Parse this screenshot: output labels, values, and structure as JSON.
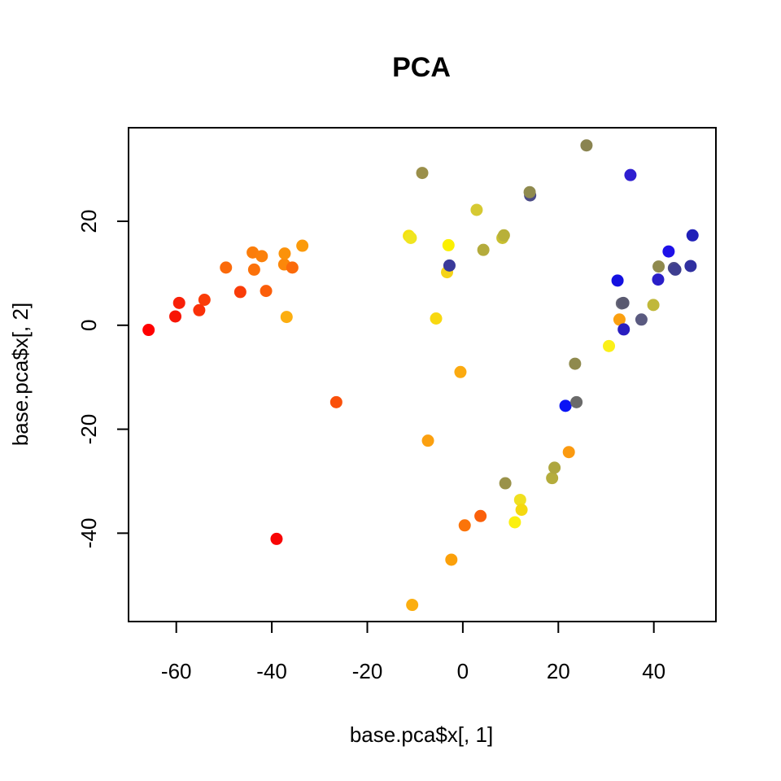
{
  "chart_data": {
    "type": "scatter",
    "title": "PCA",
    "xlabel": "base.pca$x[, 1]",
    "ylabel": "base.pca$x[, 2]",
    "xlim": [
      -70,
      53
    ],
    "ylim": [
      -57,
      38
    ],
    "xticks": [
      -60,
      -40,
      -20,
      0,
      20,
      40
    ],
    "yticks": [
      -40,
      -20,
      0,
      20
    ],
    "grid": false,
    "legend": "none",
    "points": [
      {
        "x": -65.8,
        "y": -0.9,
        "color": "#ff0000"
      },
      {
        "x": -60.2,
        "y": 1.7,
        "color": "#f81505"
      },
      {
        "x": -59.4,
        "y": 4.3,
        "color": "#f82008"
      },
      {
        "x": -55.2,
        "y": 2.9,
        "color": "#fa3008"
      },
      {
        "x": -54.1,
        "y": 4.9,
        "color": "#fa3c08"
      },
      {
        "x": -49.6,
        "y": 11.1,
        "color": "#fb6a0a"
      },
      {
        "x": -46.6,
        "y": 6.4,
        "color": "#f93c08"
      },
      {
        "x": -44.0,
        "y": 14.0,
        "color": "#fb7d0a"
      },
      {
        "x": -43.7,
        "y": 10.7,
        "color": "#fb710a"
      },
      {
        "x": -42.1,
        "y": 13.3,
        "color": "#fb800a"
      },
      {
        "x": -41.2,
        "y": 6.6,
        "color": "#fb5e0a"
      },
      {
        "x": -37.4,
        "y": 11.7,
        "color": "#fb870a"
      },
      {
        "x": -37.3,
        "y": 13.8,
        "color": "#fb920a"
      },
      {
        "x": -36.9,
        "y": 1.6,
        "color": "#fcae10"
      },
      {
        "x": -35.7,
        "y": 11.1,
        "color": "#fb6a0a"
      },
      {
        "x": -33.6,
        "y": 15.3,
        "color": "#fb9a0a"
      },
      {
        "x": -26.5,
        "y": -14.8,
        "color": "#fa500a"
      },
      {
        "x": -39.0,
        "y": -41.1,
        "color": "#f80505"
      },
      {
        "x": -11.3,
        "y": 17.2,
        "color": "#f5e20e"
      },
      {
        "x": -10.9,
        "y": 16.8,
        "color": "#f0e520"
      },
      {
        "x": -8.5,
        "y": 29.3,
        "color": "#9a8f4a"
      },
      {
        "x": -3.3,
        "y": 10.2,
        "color": "#f5d318"
      },
      {
        "x": -3.0,
        "y": 15.4,
        "color": "#fbf000"
      },
      {
        "x": -2.8,
        "y": 11.5,
        "color": "#3a3a9a"
      },
      {
        "x": -5.6,
        "y": 1.3,
        "color": "#f8d810"
      },
      {
        "x": 2.9,
        "y": 22.2,
        "color": "#d6c932"
      },
      {
        "x": 4.3,
        "y": 14.5,
        "color": "#b4ab3c"
      },
      {
        "x": 8.3,
        "y": 16.8,
        "color": "#c8bf30"
      },
      {
        "x": 8.6,
        "y": 17.3,
        "color": "#b8b03a"
      },
      {
        "x": 14.1,
        "y": 25.0,
        "color": "#4a4a86"
      },
      {
        "x": 14.0,
        "y": 25.6,
        "color": "#8f8a4e"
      },
      {
        "x": 25.9,
        "y": 34.6,
        "color": "#8a8450"
      },
      {
        "x": 35.1,
        "y": 28.9,
        "color": "#2e1ed0"
      },
      {
        "x": -0.5,
        "y": -9.0,
        "color": "#fbaa10"
      },
      {
        "x": -7.3,
        "y": -22.2,
        "color": "#fba010"
      },
      {
        "x": -2.4,
        "y": -45.1,
        "color": "#fba00a"
      },
      {
        "x": -10.6,
        "y": -53.8,
        "color": "#fbae10"
      },
      {
        "x": 0.4,
        "y": -38.5,
        "color": "#fb740a"
      },
      {
        "x": 3.7,
        "y": -36.7,
        "color": "#fa600a"
      },
      {
        "x": 8.9,
        "y": -30.4,
        "color": "#9a924a"
      },
      {
        "x": 10.9,
        "y": -37.9,
        "color": "#fbf010"
      },
      {
        "x": 12.0,
        "y": -33.6,
        "color": "#f0e020"
      },
      {
        "x": 12.3,
        "y": -35.5,
        "color": "#f5d810"
      },
      {
        "x": 18.7,
        "y": -29.4,
        "color": "#b4ac3c"
      },
      {
        "x": 19.2,
        "y": -27.4,
        "color": "#aea63e"
      },
      {
        "x": 21.5,
        "y": -15.5,
        "color": "#0a14f5"
      },
      {
        "x": 22.2,
        "y": -24.4,
        "color": "#fb9a10"
      },
      {
        "x": 23.5,
        "y": -7.4,
        "color": "#8f8a4e"
      },
      {
        "x": 23.8,
        "y": -14.8,
        "color": "#6a6a6a"
      },
      {
        "x": 30.6,
        "y": -4.0,
        "color": "#fbf018"
      },
      {
        "x": 32.4,
        "y": 8.6,
        "color": "#1410e0"
      },
      {
        "x": 32.8,
        "y": 1.1,
        "color": "#fba010"
      },
      {
        "x": 33.3,
        "y": 4.2,
        "color": "#6a6a78"
      },
      {
        "x": 33.6,
        "y": 4.3,
        "color": "#5a5a70"
      },
      {
        "x": 33.7,
        "y": -0.8,
        "color": "#2a1ec0"
      },
      {
        "x": 37.4,
        "y": 1.1,
        "color": "#5a5a80"
      },
      {
        "x": 39.9,
        "y": 3.9,
        "color": "#c0b83a"
      },
      {
        "x": 40.9,
        "y": 8.8,
        "color": "#2a1ec8"
      },
      {
        "x": 41.0,
        "y": 11.3,
        "color": "#8f8a4e"
      },
      {
        "x": 43.1,
        "y": 14.2,
        "color": "#1e10e8"
      },
      {
        "x": 44.2,
        "y": 11.0,
        "color": "#4a4a86"
      },
      {
        "x": 44.5,
        "y": 10.7,
        "color": "#3e3e90"
      },
      {
        "x": 47.7,
        "y": 11.4,
        "color": "#3030a0"
      },
      {
        "x": 48.1,
        "y": 17.3,
        "color": "#2020b8"
      }
    ]
  }
}
